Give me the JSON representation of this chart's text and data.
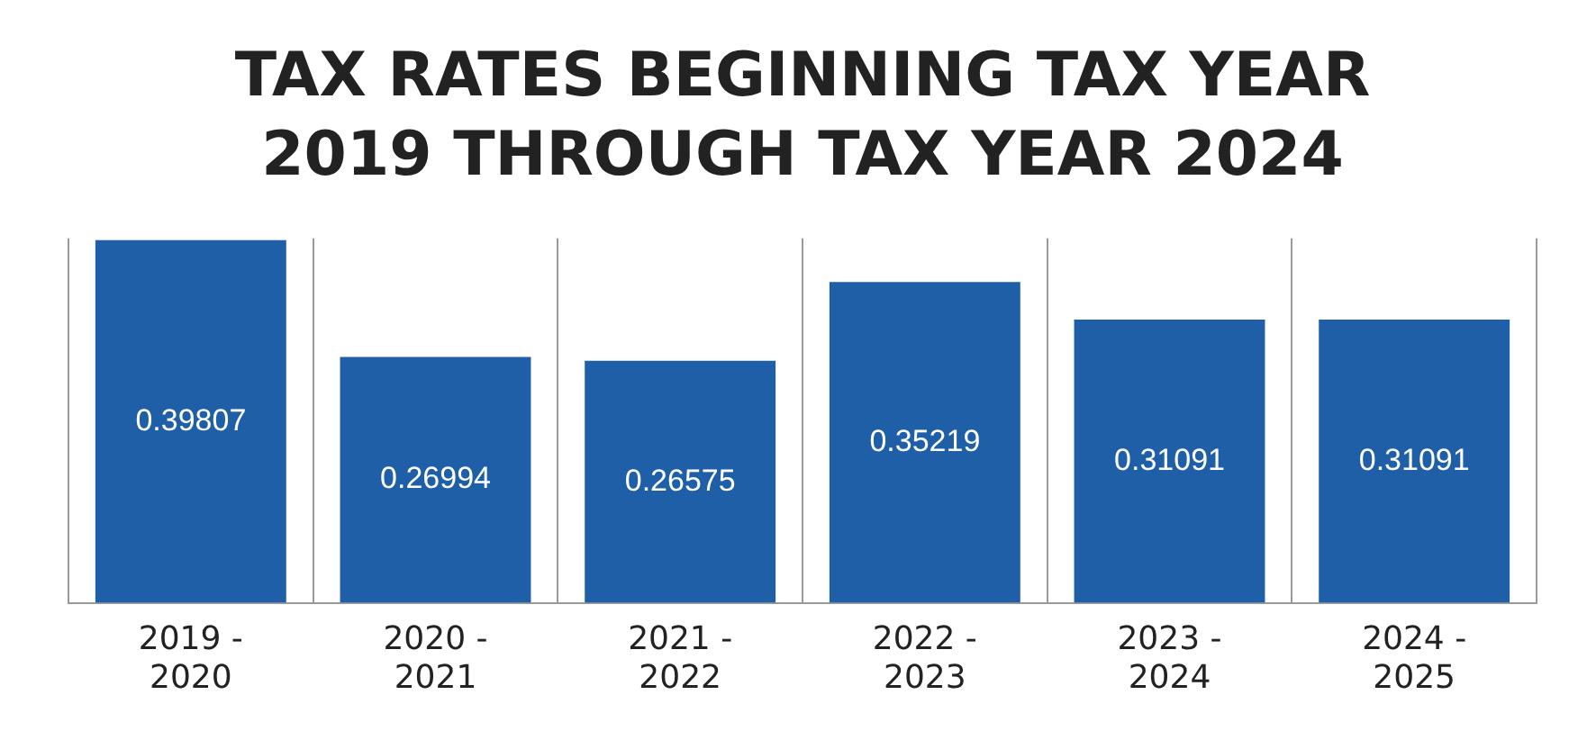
{
  "chart_data": {
    "type": "bar",
    "title": "TAX RATES BEGINNING TAX YEAR 2019 THROUGH TAX YEAR 2024",
    "categories": [
      "2019 - 2020",
      "2020 - 2021",
      "2021 - 2022",
      "2022 - 2023",
      "2023 - 2024",
      "2024 - 2025"
    ],
    "values": [
      0.39807,
      0.26994,
      0.26575,
      0.35219,
      0.31091,
      0.31091
    ],
    "color": "#1f5fa8",
    "data_labels": true,
    "grid": "x",
    "legend": false
  }
}
